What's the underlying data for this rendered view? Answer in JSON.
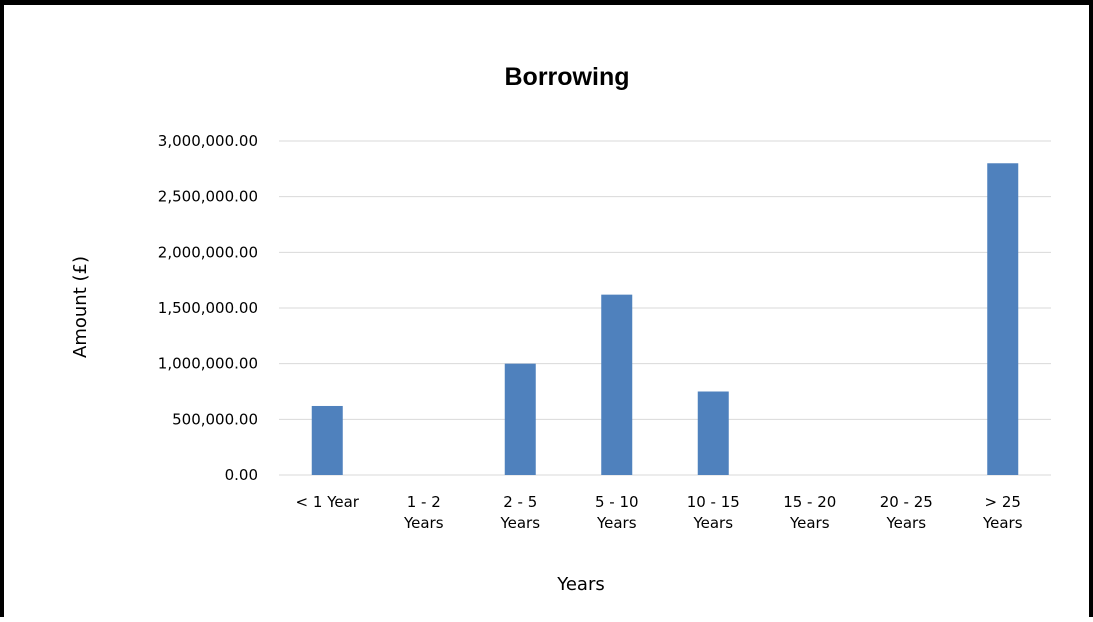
{
  "chart_data": {
    "type": "bar",
    "title": "Borrowing",
    "xlabel": "Years",
    "ylabel": "Amount (£)",
    "categories": [
      [
        "< 1 Year"
      ],
      [
        "1 - 2",
        "Years"
      ],
      [
        "2 - 5",
        "Years"
      ],
      [
        "5 - 10",
        "Years"
      ],
      [
        "10 - 15",
        "Years"
      ],
      [
        "15 - 20",
        "Years"
      ],
      [
        "20 - 25",
        "Years"
      ],
      [
        "> 25",
        "Years"
      ]
    ],
    "values": [
      620000,
      0,
      1000000,
      1620000,
      750000,
      0,
      0,
      2800000
    ],
    "ylim": [
      0,
      3000000
    ],
    "yticks": [
      {
        "value": 0,
        "label": "0.00"
      },
      {
        "value": 500000,
        "label": "500,000.00"
      },
      {
        "value": 1000000,
        "label": "1,000,000.00"
      },
      {
        "value": 1500000,
        "label": "1,500,000.00"
      },
      {
        "value": 2000000,
        "label": "2,000,000.00"
      },
      {
        "value": 2500000,
        "label": "2,500,000.00"
      },
      {
        "value": 3000000,
        "label": "3,000,000.00"
      }
    ],
    "grid": true,
    "legend": "none",
    "bar_color": "#4f81bd"
  }
}
